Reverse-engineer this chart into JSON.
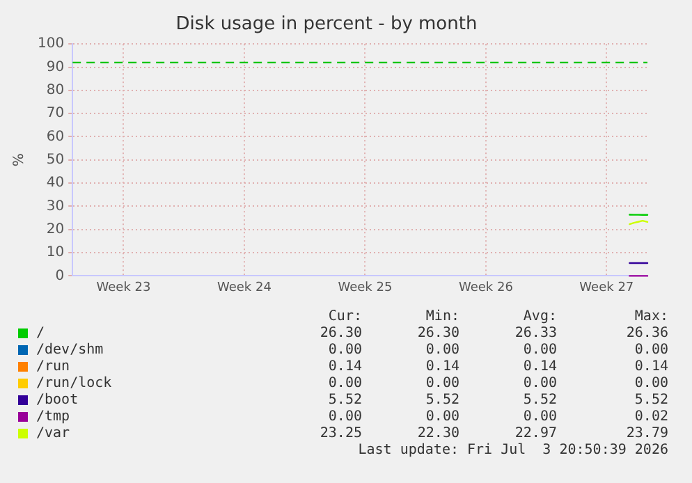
{
  "chart_data": {
    "type": "line",
    "title": "Disk usage in percent - by month",
    "ylabel": "%",
    "x": [
      "2026-07-02T20:00",
      "2026-07-03T02:00",
      "2026-07-03T08:00",
      "2026-07-03T14:00",
      "2026-07-03T20:50"
    ],
    "series": [
      {
        "name": "/",
        "color": "#00cc00",
        "values": [
          26.36,
          26.35,
          26.33,
          26.32,
          26.3
        ]
      },
      {
        "name": "/dev/shm",
        "color": "#0066b3",
        "values": [
          null,
          null,
          null,
          null,
          null
        ]
      },
      {
        "name": "/run",
        "color": "#ff8000",
        "values": [
          null,
          null,
          null,
          null,
          null
        ]
      },
      {
        "name": "/run/lock",
        "color": "#ffcc00",
        "values": [
          null,
          null,
          null,
          null,
          null
        ]
      },
      {
        "name": "/boot",
        "color": "#330099",
        "values": [
          5.52,
          5.52,
          5.52,
          5.52,
          5.52
        ]
      },
      {
        "name": "/tmp",
        "color": "#990099",
        "values": [
          0,
          0.02,
          0,
          0,
          0
        ]
      },
      {
        "name": "/var",
        "color": "#ccff00",
        "values": [
          22.3,
          22.9,
          23.3,
          23.79,
          23.25
        ]
      }
    ],
    "xlim": [
      "2026-05-31T13:00",
      "2026-07-03T20:50"
    ],
    "xticks": [
      {
        "value": "2026-06-03T12:00",
        "label": "Week 23"
      },
      {
        "value": "2026-06-10T12:00",
        "label": "Week 24"
      },
      {
        "value": "2026-06-17T12:00",
        "label": "Week 25"
      },
      {
        "value": "2026-06-24T12:00",
        "label": "Week 26"
      },
      {
        "value": "2026-07-01T12:00",
        "label": "Week 27"
      }
    ],
    "ylim": [
      0,
      100
    ],
    "yticks": [
      0,
      10,
      20,
      30,
      40,
      50,
      60,
      70,
      80,
      90,
      100
    ],
    "ref_lines": [
      {
        "axis": "y",
        "value": 92,
        "color": "#00c400",
        "line_style": "dashed"
      }
    ],
    "annotations": [
      "Cur:",
      "Min:",
      "Avg:",
      "Max:",
      "26.30",
      "26.30",
      "26.33",
      "26.36",
      "0.00",
      "0.00",
      "0.00",
      "0.00",
      "0.14",
      "0.14",
      "0.14",
      "0.14",
      "0.00",
      "0.00",
      "0.00",
      "0.00",
      "5.52",
      "5.52",
      "5.52",
      "5.52",
      "0.00",
      "0.00",
      "0.00",
      "0.02",
      "23.25",
      "22.30",
      "22.97",
      "23.79",
      "Last update: Fri Jul  3 20:50:39 2026"
    ],
    "grid": true,
    "legend": "bottom",
    "marker": "none",
    "line_style": "solid"
  }
}
